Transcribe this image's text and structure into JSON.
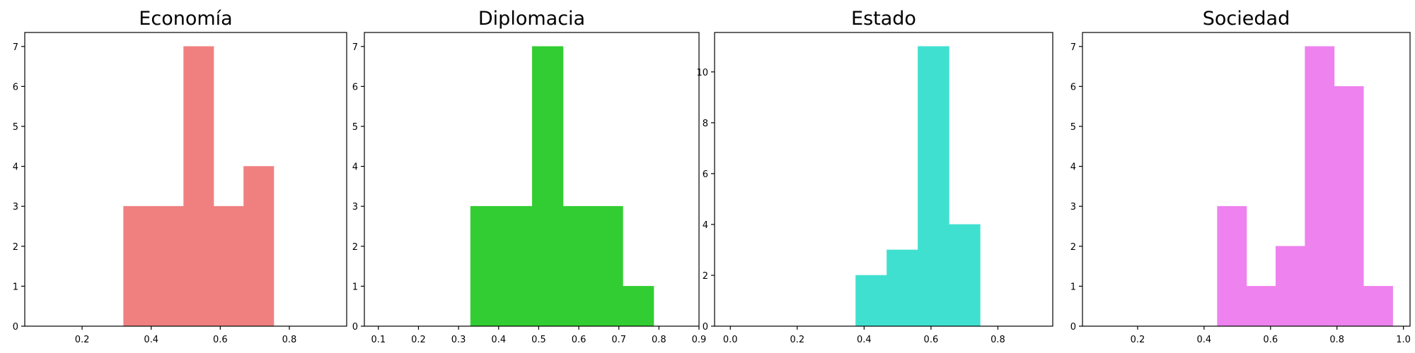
{
  "chart_data": [
    {
      "type": "bar",
      "title": "Economía",
      "color": "#f08080",
      "xlim": [
        0.034,
        0.966
      ],
      "ylim": [
        0,
        7.35
      ],
      "xticks": [
        "0.2",
        "0.4",
        "0.6",
        "0.8"
      ],
      "yticks": [
        "0",
        "1",
        "2",
        "3",
        "4",
        "5",
        "6",
        "7"
      ],
      "bins": [
        {
          "x0": 0.32,
          "x1": 0.407,
          "count": 3
        },
        {
          "x0": 0.407,
          "x1": 0.494,
          "count": 3
        },
        {
          "x0": 0.494,
          "x1": 0.581,
          "count": 7
        },
        {
          "x0": 0.581,
          "x1": 0.668,
          "count": 3
        },
        {
          "x0": 0.668,
          "x1": 0.755,
          "count": 4
        }
      ]
    },
    {
      "type": "bar",
      "title": "Diplomacia",
      "color": "#32cd32",
      "xlim": [
        0.065,
        0.9
      ],
      "ylim": [
        0,
        7.35
      ],
      "xticks": [
        "0.1",
        "0.2",
        "0.3",
        "0.4",
        "0.5",
        "0.6",
        "0.7",
        "0.8",
        "0.9"
      ],
      "yticks": [
        "0",
        "1",
        "2",
        "3",
        "4",
        "5",
        "6",
        "7"
      ],
      "bins": [
        {
          "x0": 0.33,
          "x1": 0.407,
          "count": 3
        },
        {
          "x0": 0.407,
          "x1": 0.484,
          "count": 3
        },
        {
          "x0": 0.484,
          "x1": 0.561,
          "count": 7
        },
        {
          "x0": 0.561,
          "x1": 0.638,
          "count": 3
        },
        {
          "x0": 0.638,
          "x1": 0.71,
          "count": 3
        },
        {
          "x0": 0.71,
          "x1": 0.787,
          "count": 1
        }
      ]
    },
    {
      "type": "bar",
      "title": "Estado",
      "color": "#40e0d0",
      "xlim": [
        -0.047,
        0.964
      ],
      "ylim": [
        0,
        11.55
      ],
      "xticks": [
        "0.0",
        "0.2",
        "0.4",
        "0.6",
        "0.8"
      ],
      "yticks": [
        "0",
        "2",
        "4",
        "6",
        "8",
        "10"
      ],
      "bins": [
        {
          "x0": 0.375,
          "x1": 0.468,
          "count": 2
        },
        {
          "x0": 0.468,
          "x1": 0.561,
          "count": 3
        },
        {
          "x0": 0.561,
          "x1": 0.654,
          "count": 11
        },
        {
          "x0": 0.654,
          "x1": 0.747,
          "count": 4
        }
      ]
    },
    {
      "type": "bar",
      "title": "Sociedad",
      "color": "#ee82ee",
      "xlim": [
        0.034,
        1.02
      ],
      "ylim": [
        0,
        7.35
      ],
      "xticks": [
        "0.2",
        "0.4",
        "0.6",
        "0.8",
        "1.0"
      ],
      "yticks": [
        "0",
        "1",
        "2",
        "3",
        "4",
        "5",
        "6",
        "7"
      ],
      "bins": [
        {
          "x0": 0.44,
          "x1": 0.528,
          "count": 3
        },
        {
          "x0": 0.528,
          "x1": 0.616,
          "count": 1
        },
        {
          "x0": 0.616,
          "x1": 0.704,
          "count": 2
        },
        {
          "x0": 0.704,
          "x1": 0.792,
          "count": 7
        },
        {
          "x0": 0.792,
          "x1": 0.88,
          "count": 6
        },
        {
          "x0": 0.88,
          "x1": 0.968,
          "count": 1
        }
      ]
    }
  ]
}
